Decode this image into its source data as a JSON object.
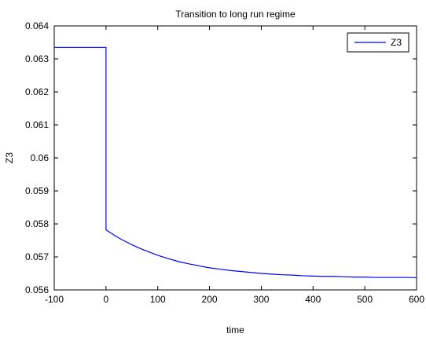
{
  "chart_data": {
    "type": "line",
    "title": "Transition to long run regime",
    "xlabel": "time",
    "ylabel": "Z3",
    "xlim": [
      -100,
      600
    ],
    "ylim": [
      0.056,
      0.064
    ],
    "xticks": [
      -100,
      0,
      100,
      200,
      300,
      400,
      500,
      600
    ],
    "yticks": [
      0.056,
      0.057,
      0.058,
      0.059,
      0.06,
      0.061,
      0.062,
      0.063,
      0.064
    ],
    "xtick_labels": [
      "-100",
      "0",
      "100",
      "200",
      "300",
      "400",
      "500",
      "600"
    ],
    "ytick_labels": [
      "0.056",
      "0.057",
      "0.058",
      "0.059",
      "0.06",
      "0.061",
      "0.062",
      "0.063",
      "0.064"
    ],
    "grid": false,
    "legend_position": "top-right",
    "series": [
      {
        "name": "Z3",
        "color": "#0000ff",
        "x": [
          -100,
          0,
          0,
          10,
          20,
          30,
          40,
          50,
          60,
          70,
          80,
          90,
          100,
          120,
          140,
          160,
          180,
          200,
          220,
          240,
          260,
          280,
          300,
          320,
          340,
          360,
          380,
          400,
          420,
          440,
          460,
          480,
          500,
          520,
          540,
          560,
          580,
          600
        ],
        "y": [
          0.06335,
          0.06335,
          0.05782,
          0.05772,
          0.05762,
          0.05753,
          0.05745,
          0.05737,
          0.0573,
          0.05723,
          0.05717,
          0.05711,
          0.05705,
          0.05695,
          0.05686,
          0.05679,
          0.05673,
          0.05667,
          0.05663,
          0.05659,
          0.05656,
          0.05653,
          0.0565,
          0.05648,
          0.05646,
          0.05645,
          0.05643,
          0.05642,
          0.05641,
          0.05641,
          0.0564,
          0.05639,
          0.05639,
          0.05638,
          0.05638,
          0.05638,
          0.05638,
          0.05637
        ]
      }
    ]
  }
}
